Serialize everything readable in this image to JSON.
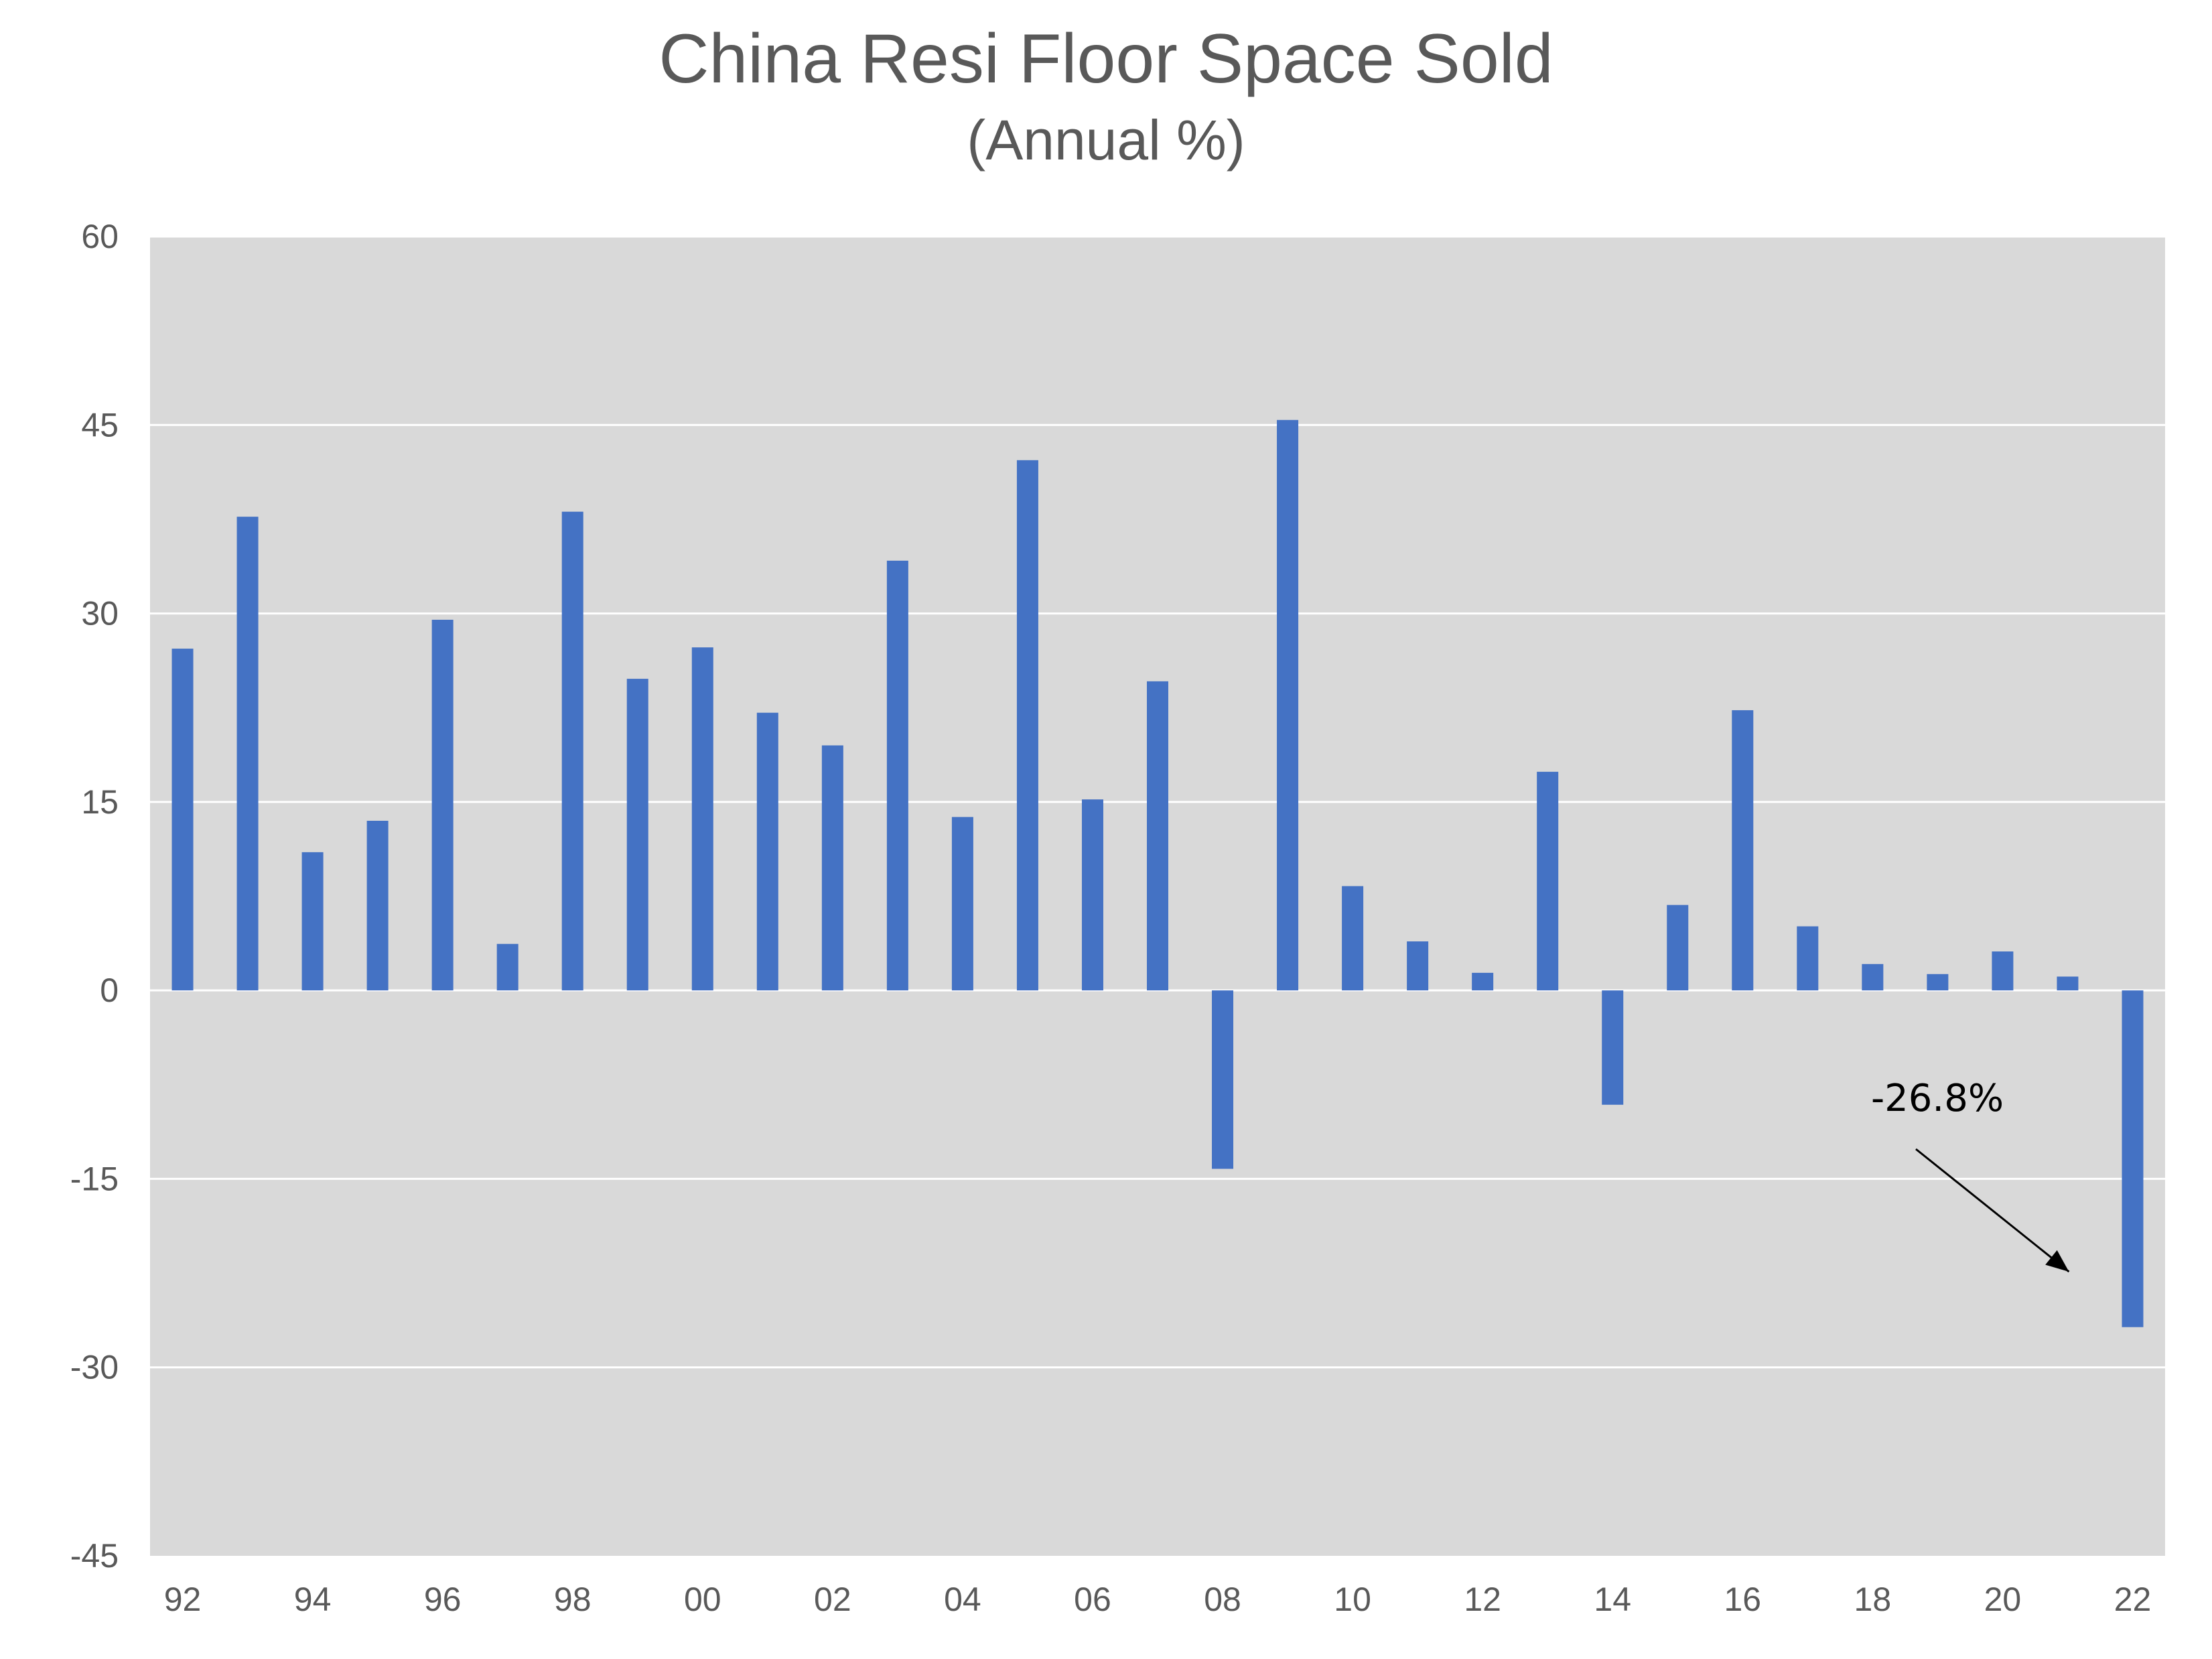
{
  "chart_data": {
    "type": "bar",
    "title": "China Resi Floor Space Sold",
    "subtitle": "(Annual %)",
    "xlabel": "",
    "ylabel": "",
    "categories": [
      "92",
      "93",
      "94",
      "95",
      "96",
      "97",
      "98",
      "99",
      "00",
      "01",
      "02",
      "03",
      "04",
      "05",
      "06",
      "07",
      "08",
      "09",
      "10",
      "11",
      "12",
      "13",
      "14",
      "15",
      "16",
      "17",
      "18",
      "19",
      "20",
      "21",
      "22"
    ],
    "x_tick_labels": [
      "92",
      "94",
      "96",
      "98",
      "00",
      "02",
      "04",
      "06",
      "08",
      "10",
      "12",
      "14",
      "16",
      "18",
      "20",
      "22"
    ],
    "values": [
      27.2,
      37.7,
      11.0,
      13.5,
      29.5,
      3.7,
      38.1,
      24.8,
      27.3,
      22.1,
      19.5,
      34.2,
      13.8,
      42.2,
      15.2,
      24.6,
      -14.2,
      45.4,
      8.3,
      3.9,
      1.4,
      17.4,
      -9.1,
      6.8,
      22.3,
      5.1,
      2.1,
      1.3,
      3.1,
      1.1,
      -26.8
    ],
    "ylim": [
      -45,
      60
    ],
    "y_ticks": [
      60,
      45,
      30,
      15,
      0,
      -15,
      -30,
      -45
    ],
    "grid": true,
    "legend": "none",
    "annotation": {
      "text": "-26.8%",
      "target": "22"
    },
    "colors": {
      "bar": "#4472C4",
      "plot_background": "#D9D9D9",
      "gridline": "#FFFFFF",
      "text": "#595959",
      "annotation": "#000000"
    }
  }
}
